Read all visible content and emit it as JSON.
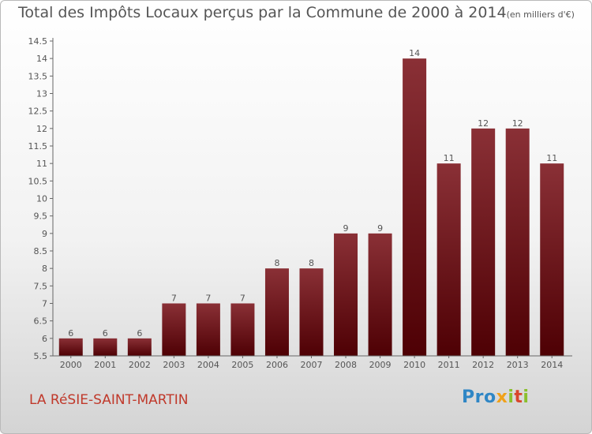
{
  "header": {
    "title": "Total des Impôts Locaux perçus par la Commune de 2000 à 2014",
    "unit": "(en milliers d'€)"
  },
  "footer": {
    "commune": "LA RéSIE-SAINT-MARTIN",
    "logo_chars": [
      "P",
      "r",
      "o",
      "x",
      "i",
      "t",
      "i"
    ]
  },
  "colors": {
    "bar_top": "#8a3036",
    "bar_bottom": "#4e0004",
    "axis": "#666666",
    "text": "#555555",
    "commune": "#c0392b",
    "logo": [
      "#2f86c5",
      "#2f86c5",
      "#2f86c5",
      "#f0a11a",
      "#8bbf2d",
      "#d9452b",
      "#8bbf2d"
    ]
  },
  "chart_data": {
    "type": "bar",
    "title": "Total des Impôts Locaux perçus par la Commune de 2000 à 2014",
    "xlabel": "",
    "ylabel": "",
    "categories": [
      "2000",
      "2001",
      "2002",
      "2003",
      "2004",
      "2005",
      "2006",
      "2007",
      "2008",
      "2009",
      "2010",
      "2011",
      "2012",
      "2013",
      "2014"
    ],
    "values": [
      6,
      6,
      6,
      7,
      7,
      7,
      8,
      8,
      9,
      9,
      14,
      11,
      12,
      12,
      11
    ],
    "ylim": [
      5.5,
      14.5
    ],
    "yticks": [
      "5.5",
      "6",
      "6.5",
      "7",
      "7.5",
      "8",
      "8.5",
      "9",
      "9.5",
      "10",
      "10.5",
      "11",
      "11.5",
      "12",
      "12.5",
      "13",
      "13.5",
      "14",
      "14.5"
    ],
    "grid": false,
    "legend": "none"
  }
}
